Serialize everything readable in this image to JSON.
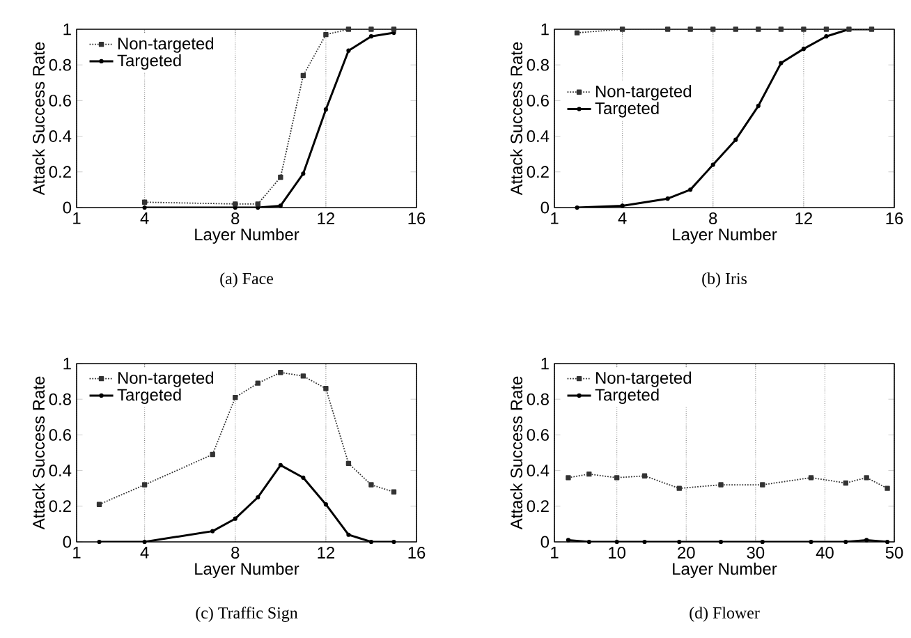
{
  "chart_data": [
    {
      "type": "line",
      "title": "(a) Face",
      "xlabel": "Layer Number",
      "ylabel": "Attack Success Rate",
      "x": [
        4,
        8,
        9,
        10,
        11,
        12,
        13,
        14,
        15
      ],
      "series": [
        {
          "name": "Non-targeted",
          "color": "#333333",
          "marker": "square",
          "line_style": "dotted",
          "values": [
            0.03,
            0.02,
            0.02,
            0.17,
            0.74,
            0.97,
            1,
            1,
            1
          ]
        },
        {
          "name": "Targeted",
          "color": "#000000",
          "marker": "circle",
          "line_style": "solid",
          "values": [
            0,
            0,
            0,
            0.01,
            0.19,
            0.55,
            0.88,
            0.96,
            0.98
          ]
        }
      ],
      "xlim": [
        1,
        16
      ],
      "xticks": [
        1,
        4,
        8,
        12,
        16
      ],
      "ylim": [
        0,
        1
      ],
      "yticks": [
        0,
        0.2,
        0.4,
        0.6,
        0.8,
        1
      ],
      "grid": "x",
      "legend": "top left"
    },
    {
      "type": "line",
      "title": "(b) Iris",
      "xlabel": "Layer Number",
      "ylabel": "Attack Success Rate",
      "x": [
        2,
        4,
        6,
        7,
        8,
        9,
        10,
        11,
        12,
        13,
        14,
        15
      ],
      "series": [
        {
          "name": "Non-targeted",
          "color": "#333333",
          "marker": "square",
          "line_style": "dotted",
          "values": [
            0.98,
            1,
            1,
            1,
            1,
            1,
            1,
            1,
            1,
            1,
            1,
            1
          ]
        },
        {
          "name": "Targeted",
          "color": "#000000",
          "marker": "circle",
          "line_style": "solid",
          "values": [
            0,
            0.01,
            0.05,
            0.1,
            0.24,
            0.38,
            0.57,
            0.81,
            0.89,
            0.96,
            1,
            1
          ]
        }
      ],
      "xlim": [
        1,
        16
      ],
      "xticks": [
        1,
        4,
        8,
        12,
        16
      ],
      "ylim": [
        0,
        1
      ],
      "yticks": [
        0,
        0.2,
        0.4,
        0.6,
        0.8,
        1
      ],
      "grid": "x",
      "legend": "left"
    },
    {
      "type": "line",
      "title": "(c) Traffic Sign",
      "xlabel": "Layer Number",
      "ylabel": "Attack Success Rate",
      "x": [
        2,
        4,
        7,
        8,
        9,
        10,
        11,
        12,
        13,
        14,
        15
      ],
      "series": [
        {
          "name": "Non-targeted",
          "color": "#333333",
          "marker": "square",
          "line_style": "dotted",
          "values": [
            0.21,
            0.32,
            0.49,
            0.81,
            0.89,
            0.95,
            0.93,
            0.86,
            0.44,
            0.32,
            0.28
          ]
        },
        {
          "name": "Targeted",
          "color": "#000000",
          "marker": "circle",
          "line_style": "solid",
          "values": [
            0,
            0,
            0.06,
            0.13,
            0.25,
            0.43,
            0.36,
            0.21,
            0.04,
            0,
            0
          ]
        }
      ],
      "xlim": [
        1,
        16
      ],
      "xticks": [
        1,
        4,
        8,
        12,
        16
      ],
      "ylim": [
        0,
        1
      ],
      "yticks": [
        0,
        0.2,
        0.4,
        0.6,
        0.8,
        1
      ],
      "grid": "x",
      "legend": "top left"
    },
    {
      "type": "line",
      "title": "(d) Flower",
      "xlabel": "Layer Number",
      "ylabel": "Attack Success Rate",
      "x": [
        3,
        6,
        10,
        14,
        19,
        25,
        31,
        38,
        43,
        46,
        49
      ],
      "series": [
        {
          "name": "Non-targeted",
          "color": "#333333",
          "marker": "square",
          "line_style": "dotted",
          "values": [
            0.36,
            0.38,
            0.36,
            0.37,
            0.3,
            0.32,
            0.32,
            0.36,
            0.33,
            0.36,
            0.3
          ]
        },
        {
          "name": "Targeted",
          "color": "#000000",
          "marker": "circle",
          "line_style": "solid",
          "values": [
            0.01,
            0,
            0,
            0,
            0,
            0,
            0,
            0,
            0,
            0.01,
            0
          ]
        }
      ],
      "xlim": [
        1,
        50
      ],
      "xticks": [
        1,
        10,
        20,
        30,
        40,
        50
      ],
      "ylim": [
        0,
        1
      ],
      "yticks": [
        0,
        0.2,
        0.4,
        0.6,
        0.8,
        1
      ],
      "grid": "x",
      "legend": "top left"
    }
  ]
}
